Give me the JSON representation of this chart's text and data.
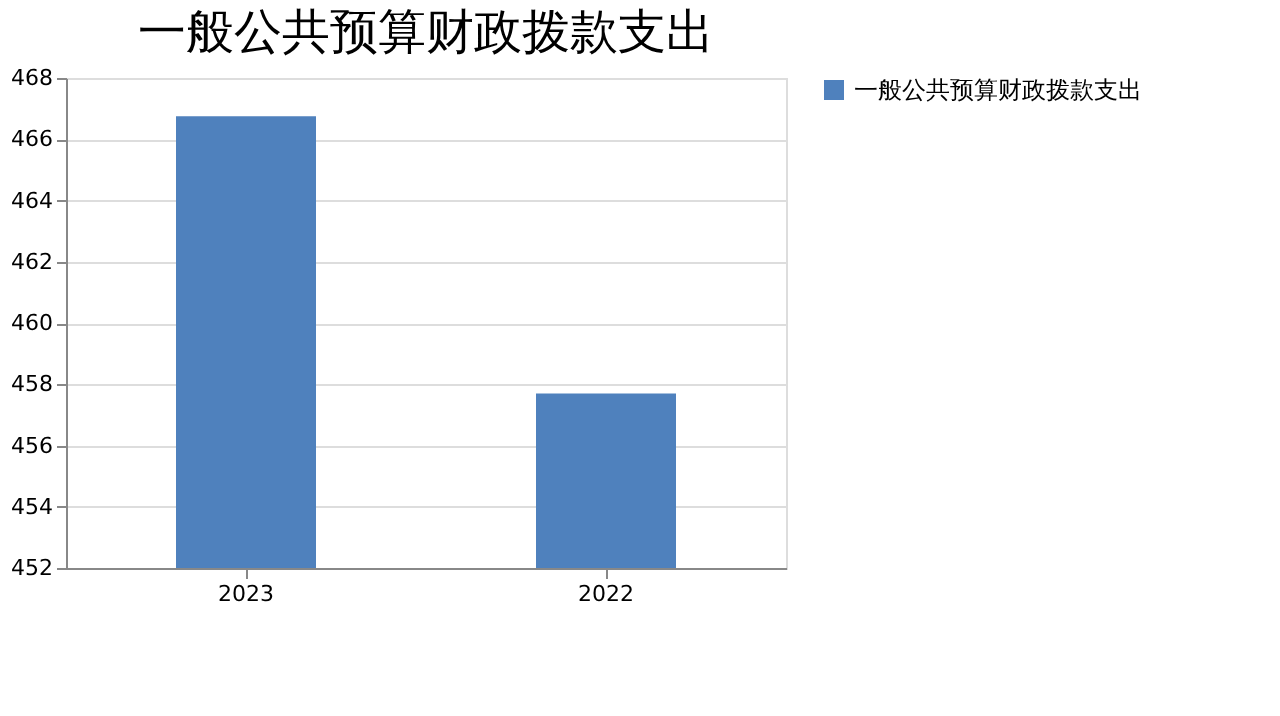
{
  "chart_data": {
    "type": "bar",
    "title": "一般公共预算财政拨款支出",
    "categories": [
      "2023",
      "2022"
    ],
    "series": [
      {
        "name": "一般公共预算财政拨款支出",
        "color": "#4f81bd",
        "values": [
          466.75,
          457.7
        ]
      }
    ],
    "ylim": [
      452,
      468
    ],
    "yticks": [
      452,
      454,
      456,
      458,
      460,
      462,
      464,
      466,
      468
    ],
    "grid": "y",
    "legend": "right"
  }
}
